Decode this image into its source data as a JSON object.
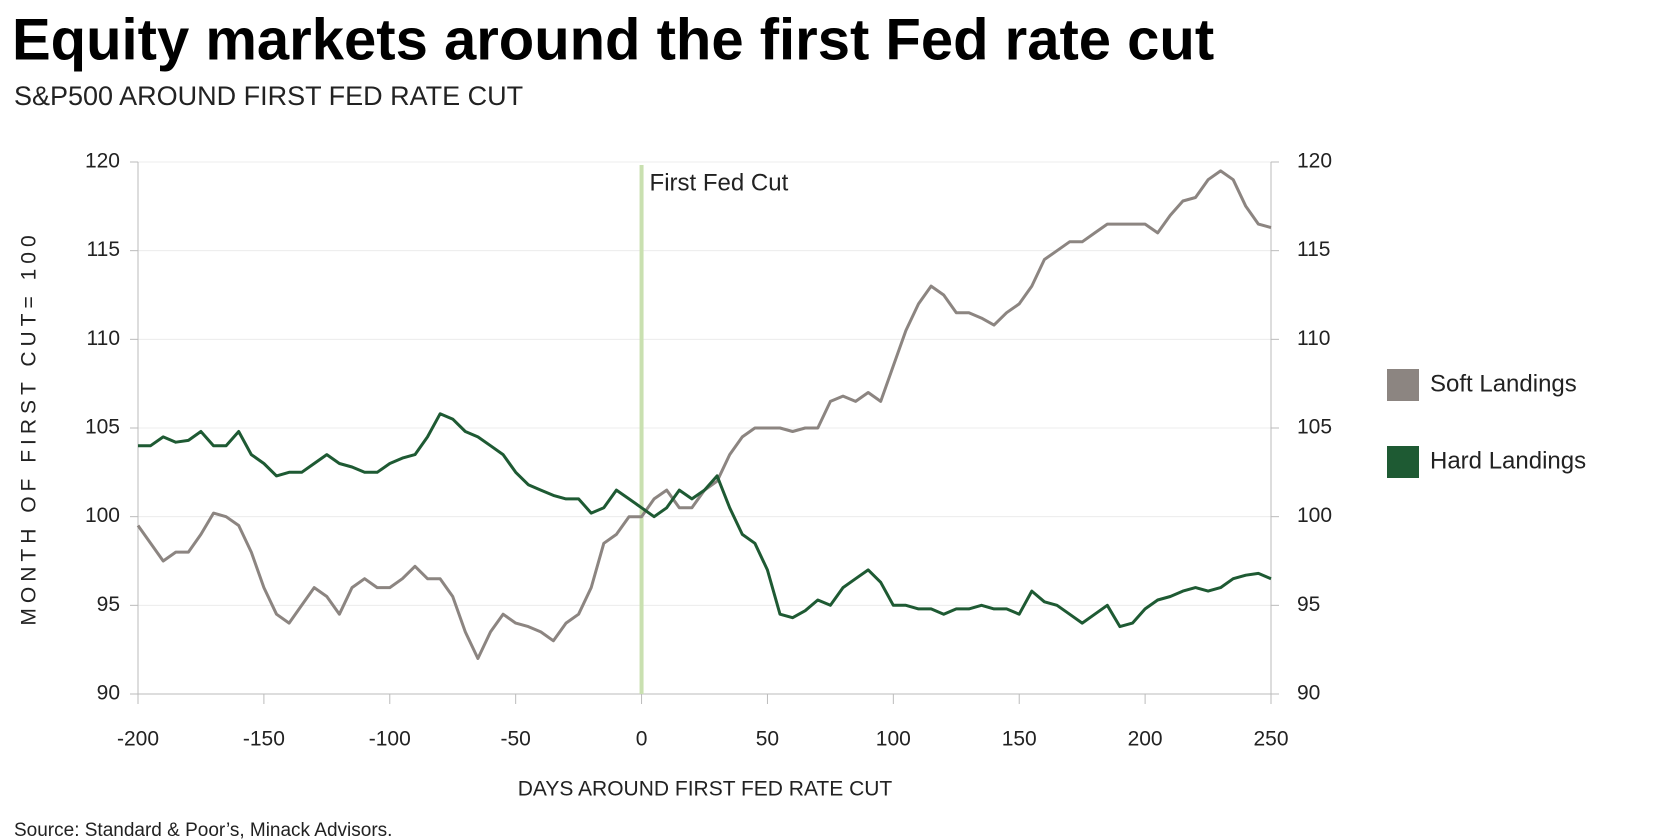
{
  "chart_data": {
    "type": "line",
    "title": "Equity markets around the first Fed rate cut",
    "subtitle": "S&P500 AROUND FIRST FED RATE CUT",
    "x_label": "DAYS AROUND FIRST FED RATE CUT",
    "y_label": "MONTH OF FIRST CUT= 100",
    "source": "Source: Standard & Poor’s, Minack Advisors.",
    "annotation": {
      "text": "First Fed Cut",
      "x": 0,
      "color": "#c9e0b0"
    },
    "x": [
      -200,
      -195,
      -190,
      -185,
      -180,
      -175,
      -170,
      -165,
      -160,
      -155,
      -150,
      -145,
      -140,
      -135,
      -130,
      -125,
      -120,
      -115,
      -110,
      -105,
      -100,
      -95,
      -90,
      -85,
      -80,
      -75,
      -70,
      -65,
      -60,
      -55,
      -50,
      -45,
      -40,
      -35,
      -30,
      -25,
      -20,
      -15,
      -10,
      -5,
      0,
      5,
      10,
      15,
      20,
      25,
      30,
      35,
      40,
      45,
      50,
      55,
      60,
      65,
      70,
      75,
      80,
      85,
      90,
      95,
      100,
      105,
      110,
      115,
      120,
      125,
      130,
      135,
      140,
      145,
      150,
      155,
      160,
      165,
      170,
      175,
      180,
      185,
      190,
      195,
      200,
      205,
      210,
      215,
      220,
      225,
      230,
      235,
      240,
      245,
      250
    ],
    "series": [
      {
        "name": "Soft Landings",
        "color": "#8c8581",
        "values": [
          99.5,
          98.5,
          97.5,
          98,
          98,
          99,
          100.2,
          100,
          99.5,
          98,
          96,
          94.5,
          94,
          95,
          96,
          95.5,
          94.5,
          96,
          96.5,
          96,
          96,
          96.5,
          97.2,
          96.5,
          96.5,
          95.5,
          93.5,
          92,
          93.5,
          94.5,
          94,
          93.8,
          93.5,
          93,
          94,
          94.5,
          96,
          98.5,
          99,
          100,
          100,
          101,
          101.5,
          100.5,
          100.5,
          101.5,
          102,
          103.5,
          104.5,
          105,
          105,
          105,
          104.8,
          105,
          105,
          106.5,
          106.8,
          106.5,
          107,
          106.5,
          108.5,
          110.5,
          112,
          113,
          112.5,
          111.5,
          111.5,
          111.2,
          110.8,
          111.5,
          112,
          113,
          114.5,
          115,
          115.5,
          115.5,
          116,
          116.5,
          116.5,
          116.5,
          116.5,
          116,
          117,
          117.8,
          118,
          119,
          119.5,
          119,
          117.5,
          116.5,
          116.3
        ]
      },
      {
        "name": "Hard Landings",
        "color": "#1e5a33",
        "values": [
          104,
          104,
          104.5,
          104.2,
          104.3,
          104.8,
          104,
          104,
          104.8,
          103.5,
          103,
          102.3,
          102.5,
          102.5,
          103,
          103.5,
          103,
          102.8,
          102.5,
          102.5,
          103,
          103.3,
          103.5,
          104.5,
          105.8,
          105.5,
          104.8,
          104.5,
          104,
          103.5,
          102.5,
          101.8,
          101.5,
          101.2,
          101,
          101,
          100.2,
          100.5,
          101.5,
          101,
          100.5,
          100,
          100.5,
          101.5,
          101,
          101.5,
          102.3,
          100.5,
          99,
          98.5,
          97,
          94.5,
          94.3,
          94.7,
          95.3,
          95,
          96,
          96.5,
          97,
          96.3,
          95,
          95,
          94.8,
          94.8,
          94.5,
          94.8,
          94.8,
          95,
          94.8,
          94.8,
          94.5,
          95.8,
          95.2,
          95,
          94.5,
          94,
          94.5,
          95,
          93.8,
          94,
          94.8,
          95.3,
          95.5,
          95.8,
          96,
          95.8,
          96,
          96.5,
          96.7,
          96.8,
          96.5
        ]
      }
    ],
    "xlim": [
      -200,
      250
    ],
    "xticks": [
      -200,
      -150,
      -100,
      -50,
      0,
      50,
      100,
      150,
      200,
      250
    ],
    "ylim": [
      90,
      120
    ],
    "yticks": [
      90,
      95,
      100,
      105,
      110,
      115,
      120
    ],
    "y2lim": [
      90,
      120
    ],
    "y2ticks": [
      90,
      95,
      100,
      105,
      110,
      115,
      120
    ],
    "grid": true,
    "legend": "right"
  }
}
